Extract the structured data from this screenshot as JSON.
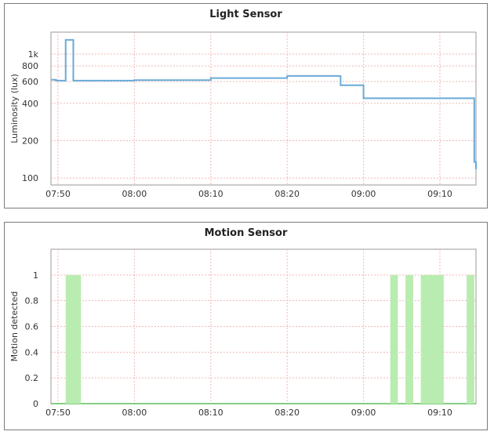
{
  "chart_data": [
    {
      "type": "line",
      "title": "Light Sensor",
      "xlabel": "",
      "ylabel": "Luminosity (lux)",
      "yscale": "log",
      "ylim": [
        88,
        1500
      ],
      "xlim": [
        "07:48:30",
        "09:17:00"
      ],
      "x_ticks": [
        "07:50",
        "08:00",
        "08:10",
        "08:20",
        "09:00",
        "09:10"
      ],
      "y_ticks": [
        {
          "value": 100,
          "label": "100"
        },
        {
          "value": 200,
          "label": "200"
        },
        {
          "value": 400,
          "label": "400"
        },
        {
          "value": 600,
          "label": "600"
        },
        {
          "value": 800,
          "label": "800"
        },
        {
          "value": 1000,
          "label": "1k"
        }
      ],
      "grid": true,
      "color": "#6aaad6",
      "series": [
        {
          "step": true,
          "points": [
            [
              "07:48:30",
              620
            ],
            [
              "07:49:45",
              610
            ],
            [
              "07:51:00",
              1300
            ],
            [
              "07:52:00",
              610
            ],
            [
              "08:00:00",
              615
            ],
            [
              "08:10:00",
              640
            ],
            [
              "08:20:00",
              665
            ],
            [
              "08:27:00",
              670
            ],
            [
              "08:27:00",
              560
            ],
            [
              "08:30:00",
              550
            ],
            [
              "08:33:00",
              545
            ],
            [
              "08:36:00",
              530
            ],
            [
              "08:39:00",
              520
            ],
            [
              "08:42:00",
              510
            ],
            [
              "08:45:00",
              500
            ],
            [
              "08:48:00",
              480
            ],
            [
              "08:51:00",
              465
            ],
            [
              "08:54:00",
              455
            ],
            [
              "08:58:00",
              440
            ],
            [
              "09:14:30",
              440
            ],
            [
              "09:14:30",
              135
            ],
            [
              "09:15:30",
              128
            ],
            [
              "09:16:30",
              118
            ],
            [
              "09:17:00",
              118
            ]
          ]
        }
      ]
    },
    {
      "type": "area",
      "title": "Motion Sensor",
      "xlabel": "",
      "ylabel": "Motion detected",
      "ylim": [
        0,
        1.2
      ],
      "xlim": [
        "07:48:30",
        "09:17:00"
      ],
      "x_ticks": [
        "07:50",
        "08:00",
        "08:10",
        "08:20",
        "09:00",
        "09:10"
      ],
      "y_ticks": [
        {
          "value": 0,
          "label": "0"
        },
        {
          "value": 0.2,
          "label": "0.2"
        },
        {
          "value": 0.4,
          "label": "0.4"
        },
        {
          "value": 0.6,
          "label": "0.6"
        },
        {
          "value": 0.8,
          "label": "0.8"
        },
        {
          "value": 1,
          "label": "1"
        }
      ],
      "grid": true,
      "color": "#b9ecb0",
      "line_color": "#5fbf5a",
      "intervals": [
        {
          "start": "07:51:00",
          "end": "07:53:00",
          "value": 1
        },
        {
          "start": "09:03:30",
          "end": "09:04:30",
          "value": 1
        },
        {
          "start": "09:05:30",
          "end": "09:06:30",
          "value": 1
        },
        {
          "start": "09:07:30",
          "end": "09:10:30",
          "value": 1
        },
        {
          "start": "09:13:30",
          "end": "09:14:30",
          "value": 1
        }
      ]
    }
  ]
}
